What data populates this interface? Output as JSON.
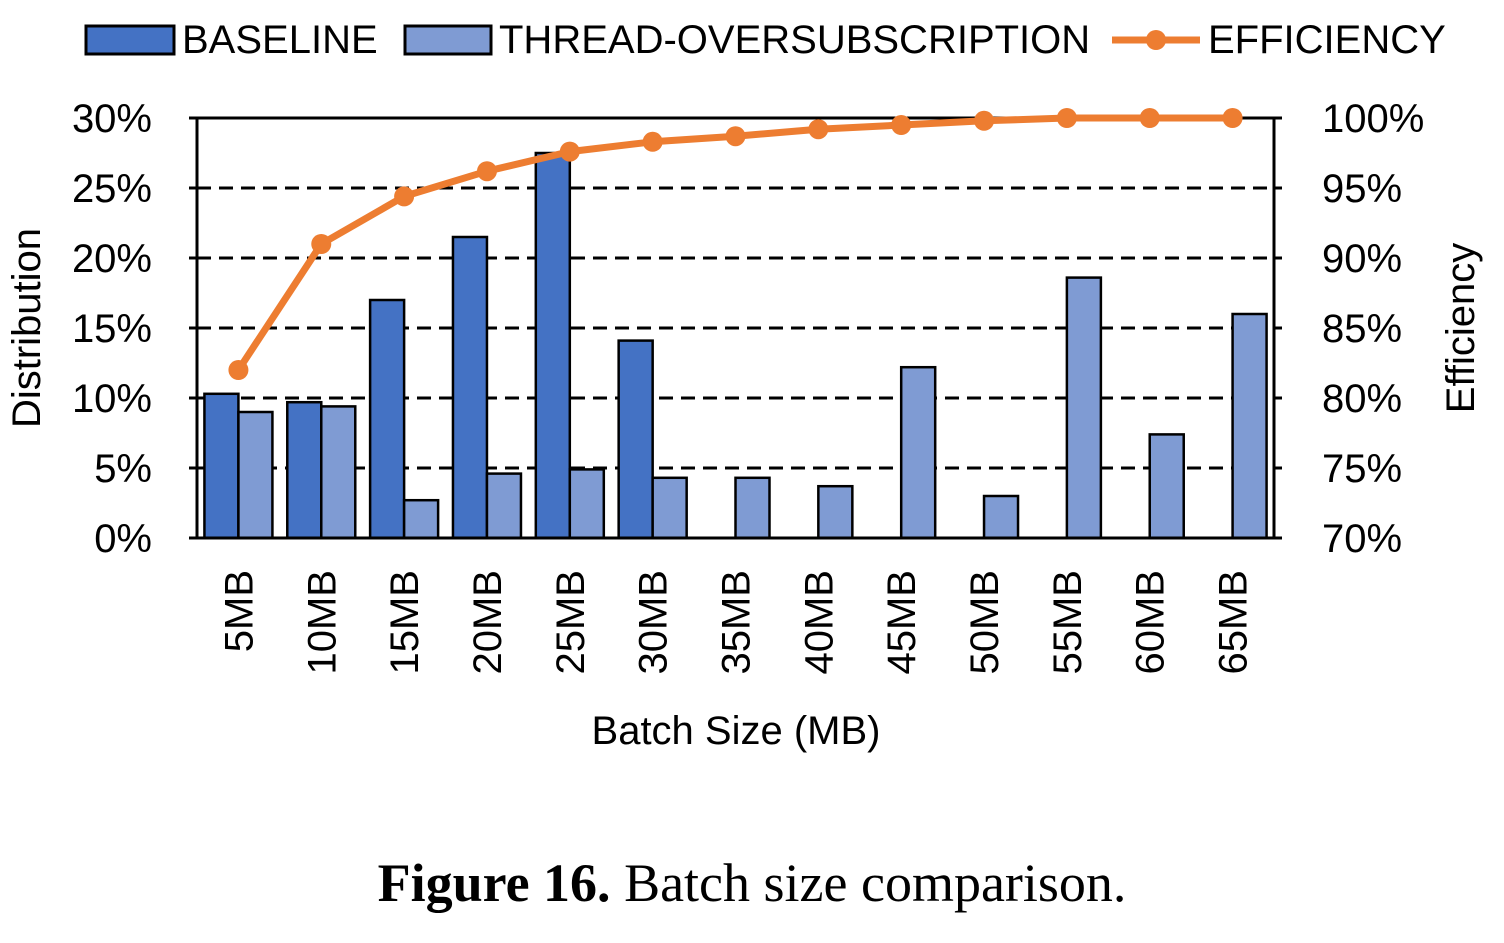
{
  "caption": {
    "label": "Figure 16.",
    "text": " Batch size comparison."
  },
  "chart_data": {
    "type": "bar",
    "xlabel": "Batch Size (MB)",
    "ylabel": "Distribution",
    "y2label": "Efficiency",
    "ylim": [
      0,
      30
    ],
    "y2lim": [
      70,
      100
    ],
    "yticks": [
      "0%",
      "5%",
      "10%",
      "15%",
      "20%",
      "25%",
      "30%"
    ],
    "y2ticks": [
      "70%",
      "75%",
      "80%",
      "85%",
      "90%",
      "95%",
      "100%"
    ],
    "grid": "horizontal dashed",
    "legend_position": "top",
    "categories": [
      "5MB",
      "10MB",
      "15MB",
      "20MB",
      "25MB",
      "30MB",
      "35MB",
      "40MB",
      "45MB",
      "50MB",
      "55MB",
      "60MB",
      "65MB"
    ],
    "series": [
      {
        "name": "BASELINE",
        "type": "bar",
        "axis": "left",
        "color": "#4472c4",
        "values": [
          10.3,
          9.7,
          17.0,
          21.5,
          27.5,
          14.1,
          0,
          0,
          0,
          0,
          0,
          0,
          0
        ]
      },
      {
        "name": "THREAD-OVERSUBSCRIPTION",
        "type": "bar",
        "axis": "left",
        "color": "#7f9bd3",
        "values": [
          9.0,
          9.4,
          2.7,
          4.6,
          4.9,
          4.3,
          4.3,
          3.7,
          12.2,
          3.0,
          18.6,
          7.4,
          16.0
        ]
      },
      {
        "name": "EFFICIENCY",
        "type": "line",
        "axis": "right",
        "color": "#ed7d31",
        "values": [
          82.0,
          91.0,
          94.4,
          96.2,
          97.6,
          98.3,
          98.7,
          99.2,
          99.5,
          99.8,
          100.0,
          100.0,
          100.0
        ]
      }
    ]
  }
}
